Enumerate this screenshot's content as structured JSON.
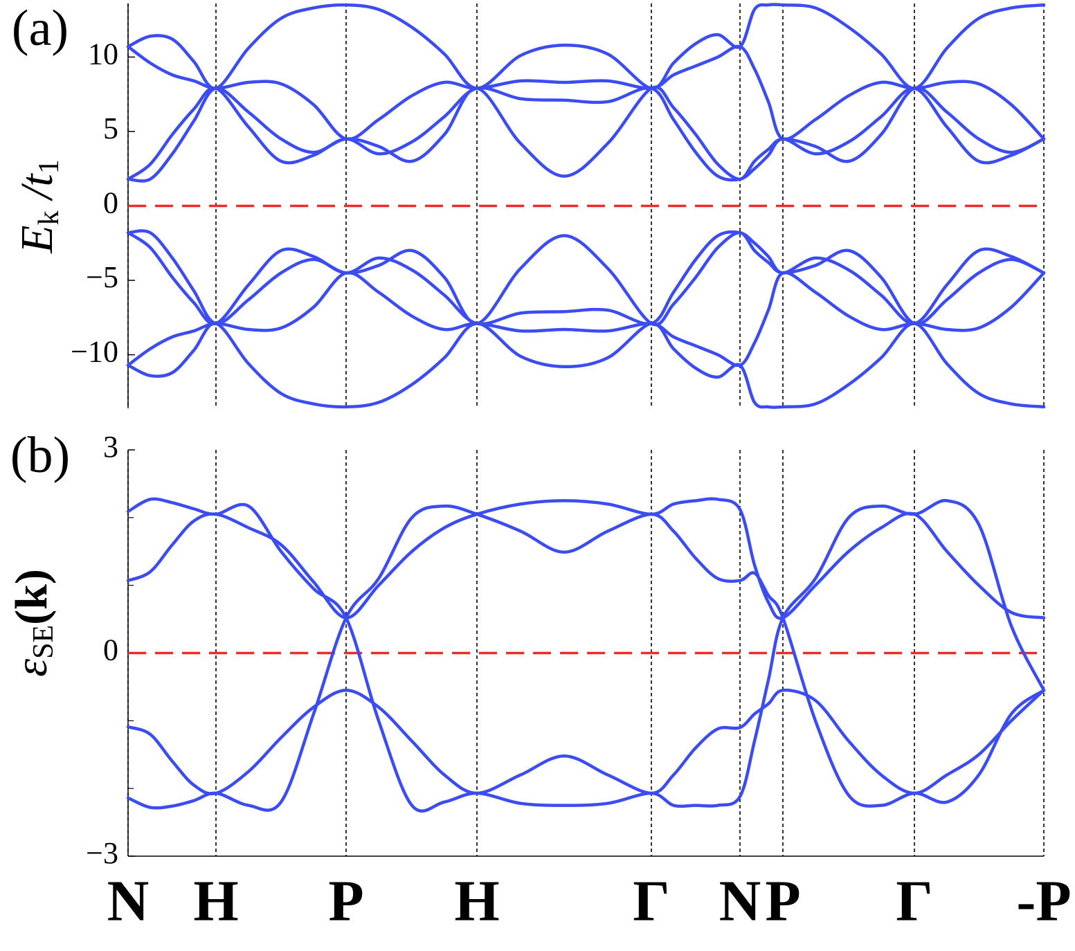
{
  "chart_data": [
    {
      "type": "line",
      "panel_label": "(a)",
      "ylabel": [
        {
          "text": "E",
          "style": "italic"
        },
        {
          "text": "k",
          "style": "sub"
        },
        {
          "text": " /",
          "style": "italic"
        },
        {
          "text": "t",
          "style": "italic"
        },
        {
          "text": "1",
          "style": "sub"
        }
      ],
      "x": [
        0,
        0.32,
        0.64,
        0.95,
        1.27,
        1.74,
        2.21,
        2.68,
        3.15,
        3.62,
        4.1,
        4.57,
        5.04,
        5.67,
        6.3,
        6.93,
        7.56,
        7.88,
        8.2,
        8.52,
        8.84,
        9.05,
        9.25,
        9.46,
        9.93,
        10.41,
        10.88,
        11.36,
        11.83,
        12.29,
        12.76,
        13.23
      ],
      "xlim": [
        0,
        13.23
      ],
      "xticks": [
        0,
        1.27,
        3.15,
        5.04,
        7.56,
        8.84,
        9.46,
        11.36,
        13.23
      ],
      "ylim": [
        -13.6,
        13.6
      ],
      "yticks": [
        {
          "value": -10,
          "label": "−10"
        },
        {
          "value": -5,
          "label": "−5"
        },
        0,
        5,
        10
      ],
      "hline": 0,
      "hline_color": "#ee2a2a",
      "grid": false,
      "bottom_axis": false,
      "series": [
        {
          "color": "#3a4cf2",
          "values": [
            10.7,
            11.4,
            11.2,
            9.7,
            7.9,
            10.6,
            12.6,
            13.3,
            13.5,
            13.2,
            12.0,
            10.2,
            7.9,
            10.1,
            10.8,
            10.2,
            7.9,
            9.6,
            10.9,
            11.5,
            10.7,
            13.2,
            13.5,
            13.5,
            13.3,
            12.0,
            10.2,
            7.9,
            10.6,
            12.6,
            13.3,
            13.5
          ]
        },
        {
          "color": "#3a4cf2",
          "values": [
            10.7,
            9.6,
            8.8,
            8.4,
            7.9,
            8.3,
            8.2,
            6.8,
            4.5,
            5.8,
            7.4,
            8.3,
            7.9,
            8.4,
            8.3,
            8.4,
            7.9,
            8.8,
            9.4,
            10.0,
            10.7,
            9.2,
            7.0,
            4.5,
            5.8,
            7.4,
            8.3,
            7.9,
            8.3,
            8.2,
            6.8,
            4.5
          ]
        },
        {
          "color": "#3a4cf2",
          "values": [
            1.8,
            2.8,
            4.8,
            6.5,
            7.9,
            5.3,
            3.0,
            3.4,
            4.5,
            3.5,
            4.3,
            6.0,
            7.9,
            7.2,
            7.1,
            7.0,
            7.9,
            5.8,
            3.6,
            2.0,
            1.8,
            2.5,
            3.4,
            4.5,
            3.5,
            4.3,
            6.0,
            7.9,
            5.3,
            3.0,
            3.4,
            4.5
          ]
        },
        {
          "color": "#3a4cf2",
          "values": [
            1.8,
            1.8,
            3.5,
            5.7,
            7.9,
            6.3,
            4.5,
            3.6,
            4.5,
            4.0,
            3.0,
            4.8,
            7.9,
            4.2,
            2.0,
            4.2,
            7.9,
            6.6,
            4.8,
            2.8,
            1.8,
            3.0,
            3.8,
            4.5,
            4.0,
            3.0,
            4.8,
            7.9,
            6.3,
            4.5,
            3.6,
            4.5
          ]
        },
        {
          "color": "#3a4cf2",
          "values": [
            -10.7,
            -11.4,
            -11.2,
            -9.7,
            -7.9,
            -10.6,
            -12.6,
            -13.3,
            -13.5,
            -13.2,
            -12.0,
            -10.2,
            -7.9,
            -10.1,
            -10.8,
            -10.2,
            -7.9,
            -9.6,
            -10.9,
            -11.5,
            -10.7,
            -13.2,
            -13.5,
            -13.5,
            -13.3,
            -12.0,
            -10.2,
            -7.9,
            -10.6,
            -12.6,
            -13.3,
            -13.5
          ]
        },
        {
          "color": "#3a4cf2",
          "values": [
            -10.7,
            -9.6,
            -8.8,
            -8.4,
            -7.9,
            -8.3,
            -8.2,
            -6.8,
            -4.5,
            -5.8,
            -7.4,
            -8.3,
            -7.9,
            -8.4,
            -8.3,
            -8.4,
            -7.9,
            -8.8,
            -9.4,
            -10.0,
            -10.7,
            -9.2,
            -7.0,
            -4.5,
            -5.8,
            -7.4,
            -8.3,
            -7.9,
            -8.3,
            -8.2,
            -6.8,
            -4.5
          ]
        },
        {
          "color": "#3a4cf2",
          "values": [
            -1.8,
            -2.8,
            -4.8,
            -6.5,
            -7.9,
            -5.3,
            -3.0,
            -3.4,
            -4.5,
            -3.5,
            -4.3,
            -6.0,
            -7.9,
            -7.2,
            -7.1,
            -7.0,
            -7.9,
            -5.8,
            -3.6,
            -2.0,
            -1.8,
            -2.5,
            -3.4,
            -4.5,
            -3.5,
            -4.3,
            -6.0,
            -7.9,
            -5.3,
            -3.0,
            -3.4,
            -4.5
          ]
        },
        {
          "color": "#3a4cf2",
          "values": [
            -1.8,
            -1.8,
            -3.5,
            -5.7,
            -7.9,
            -6.3,
            -4.5,
            -3.6,
            -4.5,
            -4.0,
            -3.0,
            -4.8,
            -7.9,
            -4.2,
            -2.0,
            -4.2,
            -7.9,
            -6.6,
            -4.8,
            -2.8,
            -1.8,
            -3.0,
            -3.8,
            -4.5,
            -4.0,
            -3.0,
            -4.8,
            -7.9,
            -6.3,
            -4.5,
            -3.6,
            -4.5
          ]
        }
      ]
    },
    {
      "type": "line",
      "panel_label": "(b)",
      "ylabel": [
        {
          "text": "ε",
          "style": "italic"
        },
        {
          "text": "SE",
          "style": "sub"
        },
        {
          "text": "(k)",
          "style": "bold"
        }
      ],
      "x": [
        0,
        0.32,
        0.64,
        0.95,
        1.27,
        1.74,
        2.21,
        2.68,
        3.15,
        3.62,
        4.1,
        4.57,
        5.04,
        5.67,
        6.3,
        6.93,
        7.56,
        7.88,
        8.2,
        8.52,
        8.84,
        9.05,
        9.25,
        9.46,
        9.93,
        10.41,
        10.88,
        11.36,
        11.83,
        12.29,
        12.76,
        13.23
      ],
      "xlim": [
        0,
        13.23
      ],
      "xticks": [
        {
          "value": 0,
          "label": "N"
        },
        {
          "value": 1.27,
          "label": "H"
        },
        {
          "value": 3.15,
          "label": "P"
        },
        {
          "value": 5.04,
          "label": "H"
        },
        {
          "value": 7.56,
          "label": "Γ"
        },
        {
          "value": 8.84,
          "label": "N"
        },
        {
          "value": 9.46,
          "label": "P"
        },
        {
          "value": 11.36,
          "label": "Γ"
        },
        {
          "value": 13.23,
          "label": "-P"
        }
      ],
      "ylim": [
        -3,
        3
      ],
      "yticks": [
        {
          "value": -3,
          "label": "−3"
        },
        0,
        3
      ],
      "minor_yticks": [
        -2,
        -1,
        1,
        2
      ],
      "hline": 0,
      "hline_color": "#ee2a2a",
      "grid": false,
      "bottom_axis": true,
      "series": [
        {
          "color": "#3a4cf2",
          "values": [
            2.09,
            2.27,
            2.22,
            2.13,
            2.05,
            2.17,
            1.5,
            0.95,
            0.52,
            -1.0,
            -2.25,
            -2.2,
            -2.07,
            -2.22,
            -2.25,
            -2.22,
            -2.07,
            -2.25,
            -2.25,
            -2.25,
            -2.12,
            -1.3,
            -0.4,
            0.52,
            1.1,
            2.0,
            2.17,
            2.05,
            2.25,
            1.9,
            0.4,
            -0.55
          ]
        },
        {
          "color": "#3a4cf2",
          "values": [
            1.07,
            1.2,
            1.6,
            1.95,
            2.05,
            1.85,
            1.6,
            1.05,
            0.52,
            1.0,
            1.5,
            1.85,
            2.05,
            2.2,
            2.25,
            2.2,
            2.05,
            2.2,
            2.25,
            2.27,
            2.12,
            1.3,
            0.75,
            0.52,
            1.0,
            1.5,
            1.85,
            2.05,
            1.5,
            1.0,
            0.6,
            0.52
          ]
        },
        {
          "color": "#3a4cf2",
          "values": [
            -1.09,
            -1.2,
            -1.6,
            -1.95,
            -2.07,
            -1.75,
            -1.25,
            -0.8,
            -0.55,
            -0.8,
            -1.3,
            -1.8,
            -2.07,
            -1.8,
            -1.52,
            -1.8,
            -2.07,
            -1.8,
            -1.4,
            -1.12,
            -1.1,
            -0.9,
            -0.75,
            -0.55,
            -0.7,
            -1.3,
            -1.8,
            -2.07,
            -1.8,
            -1.5,
            -1.0,
            -0.55
          ]
        },
        {
          "color": "#3a4cf2",
          "values": [
            -2.14,
            -2.28,
            -2.26,
            -2.18,
            -2.07,
            -2.25,
            -2.2,
            -0.9,
            0.52,
            1.1,
            2.0,
            2.17,
            2.05,
            1.8,
            1.49,
            1.8,
            2.05,
            1.8,
            1.4,
            1.1,
            1.07,
            1.18,
            0.85,
            0.52,
            -1.0,
            -2.1,
            -2.25,
            -2.07,
            -2.2,
            -1.8,
            -0.9,
            -0.55
          ]
        }
      ]
    }
  ]
}
